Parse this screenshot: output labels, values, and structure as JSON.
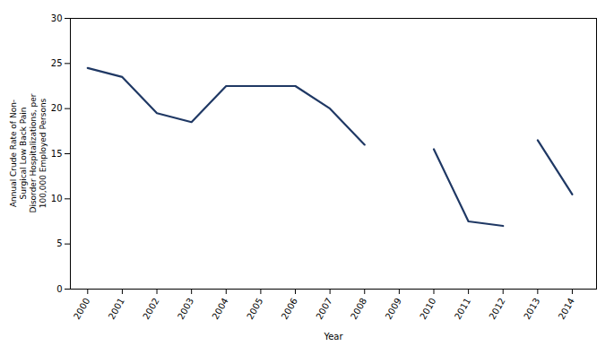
{
  "chart_data": {
    "type": "line",
    "x": [
      2000,
      2001,
      2002,
      2003,
      2004,
      2005,
      2006,
      2007,
      2008,
      2009,
      2010,
      2011,
      2012,
      2013,
      2014
    ],
    "series": [
      {
        "color": "#1F3864",
        "values": [
          24.5,
          23.5,
          19.5,
          18.5,
          22.5,
          22.5,
          22.5,
          20.0,
          16.0,
          null,
          null,
          null,
          null,
          null,
          null
        ]
      },
      {
        "color": "#1F3864",
        "values": [
          null,
          null,
          null,
          null,
          null,
          null,
          null,
          null,
          null,
          null,
          15.5,
          7.5,
          7.0,
          null,
          null
        ]
      },
      {
        "color": "#1F3864",
        "values": [
          null,
          null,
          null,
          null,
          null,
          null,
          null,
          null,
          null,
          null,
          null,
          null,
          null,
          16.5,
          10.5
        ]
      }
    ],
    "xlabel": "Year",
    "ylabel": "Annual Crude Rate of Non-\nSurgical Low Back Pain\nDisorder Hospitalizations, per\n100,000 Employed Persons",
    "xlim": [
      1999.5,
      2014.7
    ],
    "xticks": [
      2000,
      2001,
      2002,
      2003,
      2004,
      2005,
      2006,
      2007,
      2008,
      2009,
      2010,
      2011,
      2012,
      2013,
      2014
    ],
    "ylim": [
      0,
      30
    ],
    "yticks": [
      0,
      5,
      10,
      15,
      20,
      25,
      30
    ],
    "grid": false
  }
}
